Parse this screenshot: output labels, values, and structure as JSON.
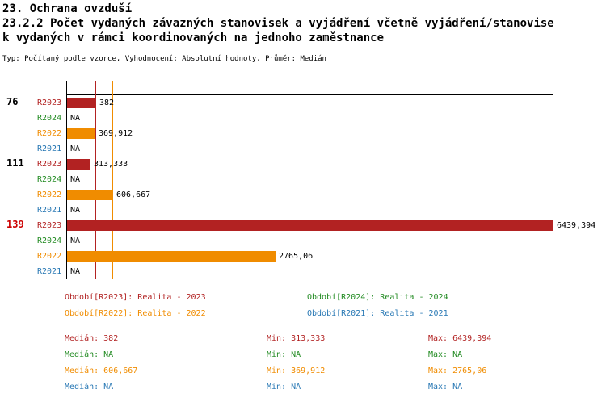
{
  "title": {
    "line1": "23. Ochrana ovzduší",
    "line2": "23.2.2 Počet vydaných závazných stanovisek a vyjádření včetně vyjádření/stanovise",
    "line3": "k vydaných v rámci koordinovaných na jednoho zaměstnance"
  },
  "subtitle": "Typ: Počítaný podle vzorce, Vyhodnocení: Absolutní hodnoty, Průměr: Medián",
  "chart_data": {
    "type": "bar",
    "orientation": "horizontal",
    "value_axis_max": 6439.394,
    "series": [
      "R2023",
      "R2024",
      "R2022",
      "R2021"
    ],
    "series_colors": {
      "R2023": "#b22222",
      "R2024": "#228b22",
      "R2022": "#f08c00",
      "R2021": "#2878b4"
    },
    "groups": [
      {
        "group_label": "76",
        "group_label_color": "#000000",
        "bars": [
          {
            "series": "R2023",
            "value": 382,
            "value_label": "382"
          },
          {
            "series": "R2024",
            "value": null,
            "value_label": "NA"
          },
          {
            "series": "R2022",
            "value": 369.912,
            "value_label": "369,912"
          },
          {
            "series": "R2021",
            "value": null,
            "value_label": "NA"
          }
        ]
      },
      {
        "group_label": "111",
        "group_label_color": "#000000",
        "bars": [
          {
            "series": "R2023",
            "value": 313.333,
            "value_label": "313,333"
          },
          {
            "series": "R2024",
            "value": null,
            "value_label": "NA"
          },
          {
            "series": "R2022",
            "value": 606.667,
            "value_label": "606,667"
          },
          {
            "series": "R2021",
            "value": null,
            "value_label": "NA"
          }
        ]
      },
      {
        "group_label": "139",
        "group_label_color": "#cc0000",
        "bars": [
          {
            "series": "R2023",
            "value": 6439.394,
            "value_label": "6439,394"
          },
          {
            "series": "R2024",
            "value": null,
            "value_label": "NA"
          },
          {
            "series": "R2022",
            "value": 2765.06,
            "value_label": "2765,06"
          },
          {
            "series": "R2021",
            "value": null,
            "value_label": "NA"
          }
        ]
      }
    ],
    "median_lines": [
      {
        "series": "R2023",
        "value": 382
      },
      {
        "series": "R2022",
        "value": 606.667
      }
    ]
  },
  "legend": [
    {
      "series": "R2023",
      "text": "Období[R2023]: Realita - 2023"
    },
    {
      "series": "R2024",
      "text": "Období[R2024]: Realita - 2024"
    },
    {
      "series": "R2022",
      "text": "Období[R2022]: Realita - 2022"
    },
    {
      "series": "R2021",
      "text": "Období[R2021]: Realita - 2021"
    }
  ],
  "stat_labels": {
    "median": "Medián",
    "min": "Min",
    "max": "Max"
  },
  "stats": [
    {
      "series": "R2023",
      "median": "382",
      "min": "313,333",
      "max": "6439,394"
    },
    {
      "series": "R2024",
      "median": "NA",
      "min": "NA",
      "max": "NA"
    },
    {
      "series": "R2022",
      "median": "606,667",
      "min": "369,912",
      "max": "2765,06"
    },
    {
      "series": "R2021",
      "median": "NA",
      "min": "NA",
      "max": "NA"
    }
  ]
}
